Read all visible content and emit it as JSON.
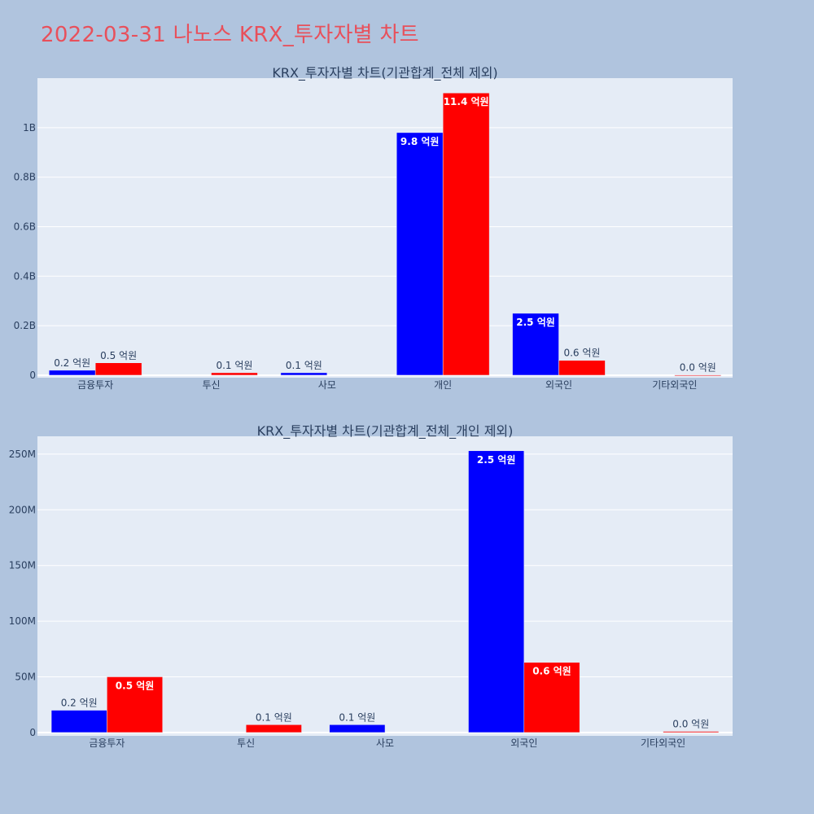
{
  "page_title": "2022-03-31 나노스 KRX_투자자별 차트",
  "colors": {
    "background": "#b0c4de",
    "plot_bg": "#e5ecf6",
    "grid": "#ffffff",
    "buy": "#0000ff",
    "sell": "#ff0000",
    "title": "#e8505b",
    "text": "#2a3f5f"
  },
  "chart_data": [
    {
      "type": "bar",
      "title": "KRX_투자자별 차트(기관합계_전체 제외)",
      "categories": [
        "금융투자",
        "투신",
        "사모",
        "개인",
        "외국인",
        "기타외국인"
      ],
      "series": [
        {
          "color": "#0000ff",
          "values": [
            20000000,
            0,
            10000000,
            980000000,
            250000000,
            0
          ],
          "labels": [
            "0.2 억원",
            "",
            "0.1 억원",
            "9.8 억원",
            "2.5 억원",
            ""
          ]
        },
        {
          "color": "#ff0000",
          "values": [
            50000000,
            10000000,
            0,
            1140000000,
            60000000,
            1000000
          ],
          "labels": [
            "0.5 억원",
            "0.1 억원",
            "",
            "11.4 억원",
            "0.6 억원",
            "0.0 억원"
          ]
        }
      ],
      "yticks": [
        "0",
        "0.2B",
        "0.4B",
        "0.6B",
        "0.8B",
        "1B"
      ],
      "ytick_values": [
        0,
        200000000,
        400000000,
        600000000,
        800000000,
        1000000000
      ],
      "ylim": [
        -10000000,
        1200000000
      ],
      "grid": true
    },
    {
      "type": "bar",
      "title": "KRX_투자자별 차트(기관합계_전체_개인 제외)",
      "categories": [
        "금융투자",
        "투신",
        "사모",
        "외국인",
        "기타외국인"
      ],
      "series": [
        {
          "color": "#0000ff",
          "values": [
            20000000,
            0,
            7000000,
            253000000,
            0
          ],
          "labels": [
            "0.2 억원",
            "",
            "0.1 억원",
            "2.5 억원",
            ""
          ]
        },
        {
          "color": "#ff0000",
          "values": [
            50000000,
            7000000,
            0,
            63000000,
            1000000
          ],
          "labels": [
            "0.5 억원",
            "0.1 억원",
            "",
            "0.6 억원",
            "0.0 억원"
          ]
        }
      ],
      "yticks": [
        "0",
        "50M",
        "100M",
        "150M",
        "200M",
        "250M"
      ],
      "ytick_values": [
        0,
        50000000,
        100000000,
        150000000,
        200000000,
        250000000
      ],
      "ylim": [
        -3000000,
        266000000
      ],
      "grid": true
    }
  ]
}
